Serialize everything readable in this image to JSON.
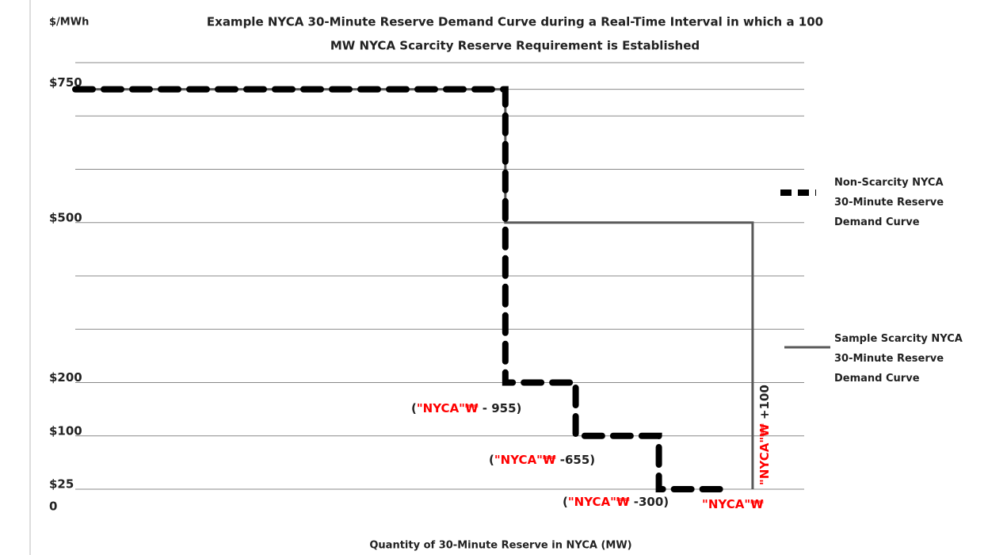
{
  "chart_data": {
    "type": "line",
    "title": [
      "Example NYCA 30-Minute Reserve Demand Curve during a Real-Time Interval in which a 100",
      "MW NYCA Scarcity Reserve Requirement is Established"
    ],
    "y_label": "$/MWh",
    "x_label": "Quantity of 30-Minute Reserve in NYCA (MW)",
    "xlim": [
      -2790,
      320
    ],
    "yticks": [
      {
        "value": 750,
        "label": "$750"
      },
      {
        "value": 500,
        "label": "$500"
      },
      {
        "value": 200,
        "label": "$200"
      },
      {
        "value": 100,
        "label": "$100"
      },
      {
        "value": 25,
        "label": "$25"
      },
      0
    ],
    "legend": "right",
    "series": [
      {
        "name": "Non-Scarcity NYCA 30-Minute Reserve Demand Curve",
        "color": "#000000",
        "dash": true,
        "x": [
          -2790,
          -955,
          -955,
          -655,
          -655,
          -300,
          -300,
          0
        ],
        "values": [
          750,
          750,
          200,
          200,
          100,
          100,
          25,
          25
        ]
      },
      {
        "name": "Sample Scarcity NYCA 30-Minute Reserve Demand Curve",
        "color": "#595959",
        "dash": false,
        "x": [
          -2790,
          -955,
          -955,
          100,
          100
        ],
        "values": [
          750,
          750,
          500,
          500,
          25
        ]
      }
    ],
    "annotations": [
      {
        "open": "(",
        "red": "\"NYCA\"₩",
        "rest": " - 955)"
      },
      {
        "open": "(",
        "red": "\"NYCA\"₩",
        "rest": " -655)"
      },
      {
        "open": "(",
        "red": "\"NYCA\"₩",
        "rest": " -300)"
      },
      {
        "red": "\"NYCA\"₩"
      },
      {
        "red": "\"NYCA\"₩",
        "rest": " +100"
      }
    ]
  }
}
